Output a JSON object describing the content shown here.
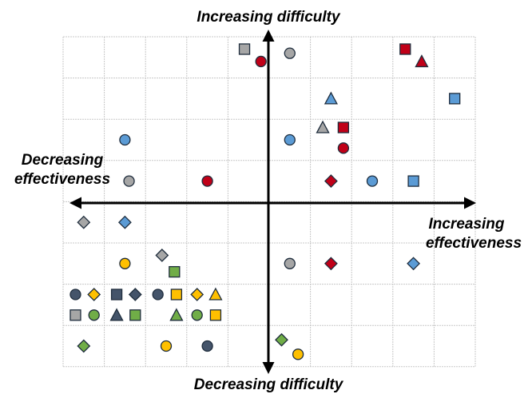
{
  "labels": {
    "top": "Increasing difficulty",
    "bottom": "Decreasing difficulty",
    "left_line1": "Decreasing",
    "left_line2": "effectiveness",
    "right_line1": "Increasing",
    "right_line2": "effectiveness"
  },
  "colors": {
    "red": "#c00018",
    "gray": "#a6a6a6",
    "blue": "#5b9bd5",
    "yellow": "#ffc000",
    "green": "#70ad47",
    "dark": "#44546a"
  },
  "markers": [
    {
      "shape": "square",
      "color": "gray",
      "col": 4.4,
      "row": 0.3
    },
    {
      "shape": "circle",
      "color": "red",
      "col": 4.8,
      "row": 0.6
    },
    {
      "shape": "circle",
      "color": "gray",
      "col": 5.5,
      "row": 0.4
    },
    {
      "shape": "square",
      "color": "red",
      "col": 8.3,
      "row": 0.3
    },
    {
      "shape": "triangle",
      "color": "red",
      "col": 8.7,
      "row": 0.6
    },
    {
      "shape": "triangle",
      "color": "blue",
      "col": 6.5,
      "row": 1.5
    },
    {
      "shape": "square",
      "color": "blue",
      "col": 9.5,
      "row": 1.5
    },
    {
      "shape": "circle",
      "color": "blue",
      "col": 1.5,
      "row": 2.5
    },
    {
      "shape": "circle",
      "color": "blue",
      "col": 5.5,
      "row": 2.5
    },
    {
      "shape": "triangle",
      "color": "gray",
      "col": 6.3,
      "row": 2.2
    },
    {
      "shape": "square",
      "color": "red",
      "col": 6.8,
      "row": 2.2
    },
    {
      "shape": "circle",
      "color": "red",
      "col": 6.8,
      "row": 2.7
    },
    {
      "shape": "circle",
      "color": "gray",
      "col": 1.6,
      "row": 3.5
    },
    {
      "shape": "circle",
      "color": "red",
      "col": 3.5,
      "row": 3.5
    },
    {
      "shape": "diamond",
      "color": "red",
      "col": 6.5,
      "row": 3.5
    },
    {
      "shape": "circle",
      "color": "blue",
      "col": 7.5,
      "row": 3.5
    },
    {
      "shape": "square",
      "color": "blue",
      "col": 8.5,
      "row": 3.5
    },
    {
      "shape": "diamond",
      "color": "gray",
      "col": 0.5,
      "row": 4.5
    },
    {
      "shape": "diamond",
      "color": "blue",
      "col": 1.5,
      "row": 4.5
    },
    {
      "shape": "circle",
      "color": "yellow",
      "col": 1.5,
      "row": 5.5
    },
    {
      "shape": "diamond",
      "color": "gray",
      "col": 2.4,
      "row": 5.3
    },
    {
      "shape": "square",
      "color": "green",
      "col": 2.7,
      "row": 5.7
    },
    {
      "shape": "circle",
      "color": "gray",
      "col": 5.5,
      "row": 5.5
    },
    {
      "shape": "diamond",
      "color": "red",
      "col": 6.5,
      "row": 5.5
    },
    {
      "shape": "diamond",
      "color": "blue",
      "col": 8.5,
      "row": 5.5
    },
    {
      "shape": "circle",
      "color": "dark",
      "col": 0.3,
      "row": 6.25
    },
    {
      "shape": "diamond",
      "color": "yellow",
      "col": 0.75,
      "row": 6.25
    },
    {
      "shape": "square",
      "color": "dark",
      "col": 1.3,
      "row": 6.25
    },
    {
      "shape": "diamond",
      "color": "dark",
      "col": 1.75,
      "row": 6.25
    },
    {
      "shape": "circle",
      "color": "dark",
      "col": 2.3,
      "row": 6.25
    },
    {
      "shape": "square",
      "color": "yellow",
      "col": 2.75,
      "row": 6.25
    },
    {
      "shape": "diamond",
      "color": "yellow",
      "col": 3.25,
      "row": 6.25
    },
    {
      "shape": "triangle",
      "color": "yellow",
      "col": 3.7,
      "row": 6.25
    },
    {
      "shape": "square",
      "color": "gray",
      "col": 0.3,
      "row": 6.75
    },
    {
      "shape": "circle",
      "color": "green",
      "col": 0.75,
      "row": 6.75
    },
    {
      "shape": "triangle",
      "color": "dark",
      "col": 1.3,
      "row": 6.75
    },
    {
      "shape": "square",
      "color": "green",
      "col": 1.75,
      "row": 6.75
    },
    {
      "shape": "triangle",
      "color": "green",
      "col": 2.75,
      "row": 6.75
    },
    {
      "shape": "circle",
      "color": "green",
      "col": 3.25,
      "row": 6.75
    },
    {
      "shape": "square",
      "color": "yellow",
      "col": 3.7,
      "row": 6.75
    },
    {
      "shape": "diamond",
      "color": "green",
      "col": 0.5,
      "row": 7.5
    },
    {
      "shape": "circle",
      "color": "yellow",
      "col": 2.5,
      "row": 7.5
    },
    {
      "shape": "circle",
      "color": "dark",
      "col": 3.5,
      "row": 7.5
    },
    {
      "shape": "diamond",
      "color": "green",
      "col": 5.3,
      "row": 7.35
    },
    {
      "shape": "circle",
      "color": "yellow",
      "col": 5.7,
      "row": 7.7
    }
  ]
}
